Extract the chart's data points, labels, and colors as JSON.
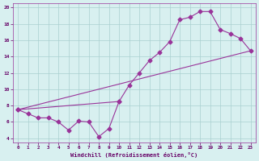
{
  "line1_x": [
    0,
    1,
    2,
    3,
    4,
    5,
    6,
    7,
    8,
    9,
    10
  ],
  "line1_y": [
    7.5,
    7.0,
    6.5,
    6.5,
    6.0,
    5.0,
    6.1,
    6.0,
    4.2,
    5.2,
    8.5
  ],
  "line2_x": [
    0,
    10,
    11,
    12,
    13,
    14,
    15,
    16,
    17,
    18,
    19,
    20,
    21,
    22,
    23
  ],
  "line2_y": [
    7.5,
    8.5,
    10.5,
    12.0,
    13.5,
    14.5,
    15.8,
    18.5,
    18.8,
    19.5,
    19.5,
    17.3,
    16.8,
    16.2,
    14.7
  ],
  "line3_x": [
    0,
    23
  ],
  "line3_y": [
    7.5,
    14.7
  ],
  "color": "#993399",
  "bg_color": "#d8f0f0",
  "grid_color": "#aacfcf",
  "xlim": [
    -0.5,
    23.5
  ],
  "ylim": [
    3.5,
    20.5
  ],
  "xlabel": "Windchill (Refroidissement éolien,°C)",
  "xticks": [
    0,
    1,
    2,
    3,
    4,
    5,
    6,
    7,
    8,
    9,
    10,
    11,
    12,
    13,
    14,
    15,
    16,
    17,
    18,
    19,
    20,
    21,
    22,
    23
  ],
  "yticks": [
    4,
    6,
    8,
    10,
    12,
    14,
    16,
    18,
    20
  ]
}
